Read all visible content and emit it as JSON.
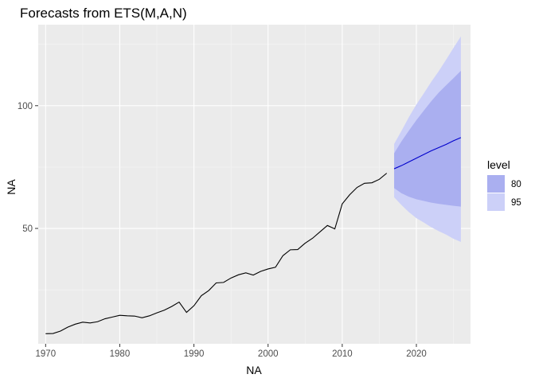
{
  "chart_data": {
    "type": "line",
    "title": "Forecasts from ETS(M,A,N)",
    "xlabel": "NA",
    "ylabel": "NA",
    "xlim": [
      1969,
      2027.3
    ],
    "ylim": [
      3,
      133
    ],
    "x_ticks": [
      1970,
      1980,
      1990,
      2000,
      2010,
      2020
    ],
    "y_ticks": [
      50,
      100
    ],
    "grid": true,
    "legend": {
      "title": "level",
      "placement": "right",
      "entries": [
        {
          "label": "80",
          "color": "#aaaff0"
        },
        {
          "label": "95",
          "color": "#ccd0f8"
        }
      ]
    },
    "colors": {
      "panel": "#ebebeb",
      "grid_major": "#ffffff",
      "grid_minor": "#f5f5f5",
      "history_line": "#000000",
      "forecast_line": "#0000cc",
      "band_80": "#aaaff0",
      "band_95": "#ccd0f8"
    },
    "series": [
      {
        "name": "history",
        "x": [
          1970,
          1971,
          1972,
          1973,
          1974,
          1975,
          1976,
          1977,
          1978,
          1979,
          1980,
          1981,
          1982,
          1983,
          1984,
          1985,
          1986,
          1987,
          1988,
          1989,
          1990,
          1991,
          1992,
          1993,
          1994,
          1995,
          1996,
          1997,
          1998,
          1999,
          2000,
          2001,
          2002,
          2003,
          2004,
          2005,
          2006,
          2007,
          2008,
          2009,
          2010,
          2011,
          2012,
          2013,
          2014,
          2015,
          2016
        ],
        "y": [
          7.1,
          7.2,
          8.2,
          9.8,
          11.0,
          11.8,
          11.5,
          12.0,
          13.2,
          13.9,
          14.6,
          14.4,
          14.3,
          13.6,
          14.4,
          15.6,
          16.7,
          18.2,
          20.0,
          15.8,
          18.5,
          22.6,
          24.7,
          27.8,
          28.0,
          29.8,
          31.1,
          31.9,
          31.0,
          32.5,
          33.5,
          34.2,
          38.9,
          41.3,
          41.4,
          44.0,
          46.0,
          48.6,
          51.2,
          49.8,
          60.0,
          63.7,
          66.7,
          68.4,
          68.6,
          70.0,
          72.5
        ]
      },
      {
        "name": "forecast",
        "x": [
          2017,
          2018,
          2019,
          2020,
          2021,
          2022,
          2023,
          2024,
          2025,
          2026
        ],
        "y": [
          74.3,
          75.6,
          77.1,
          78.6,
          80.1,
          81.6,
          82.9,
          84.2,
          85.7,
          87.0
        ]
      }
    ],
    "bands": [
      {
        "level": "95",
        "x": [
          2017,
          2018,
          2019,
          2020,
          2021,
          2022,
          2023,
          2024,
          2025,
          2026
        ],
        "lower": [
          62.7,
          59.5,
          56.6,
          54.2,
          52.4,
          50.5,
          48.9,
          47.5,
          45.8,
          44.5
        ],
        "upper": [
          84.4,
          89.8,
          95.4,
          100.5,
          105.0,
          109.7,
          114.0,
          118.7,
          123.5,
          128.2
        ]
      },
      {
        "level": "80",
        "x": [
          2017,
          2018,
          2019,
          2020,
          2021,
          2022,
          2023,
          2024,
          2025,
          2026
        ],
        "lower": [
          66.4,
          64.3,
          62.9,
          61.9,
          61.2,
          60.5,
          60.0,
          59.6,
          59.2,
          58.9
        ],
        "upper": [
          80.6,
          85.5,
          89.9,
          94.1,
          98.0,
          101.8,
          105.3,
          108.3,
          111.2,
          114.2
        ]
      }
    ]
  }
}
